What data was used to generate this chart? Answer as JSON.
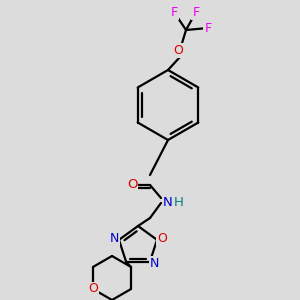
{
  "bg_color": "#dcdcdc",
  "bond_color": "#000000",
  "bond_width": 1.6,
  "atom_colors": {
    "N": "#0000cc",
    "O": "#dd0000",
    "F": "#ee00ee",
    "H": "#008080"
  },
  "fig_size": [
    3.0,
    3.0
  ],
  "dpi": 100
}
